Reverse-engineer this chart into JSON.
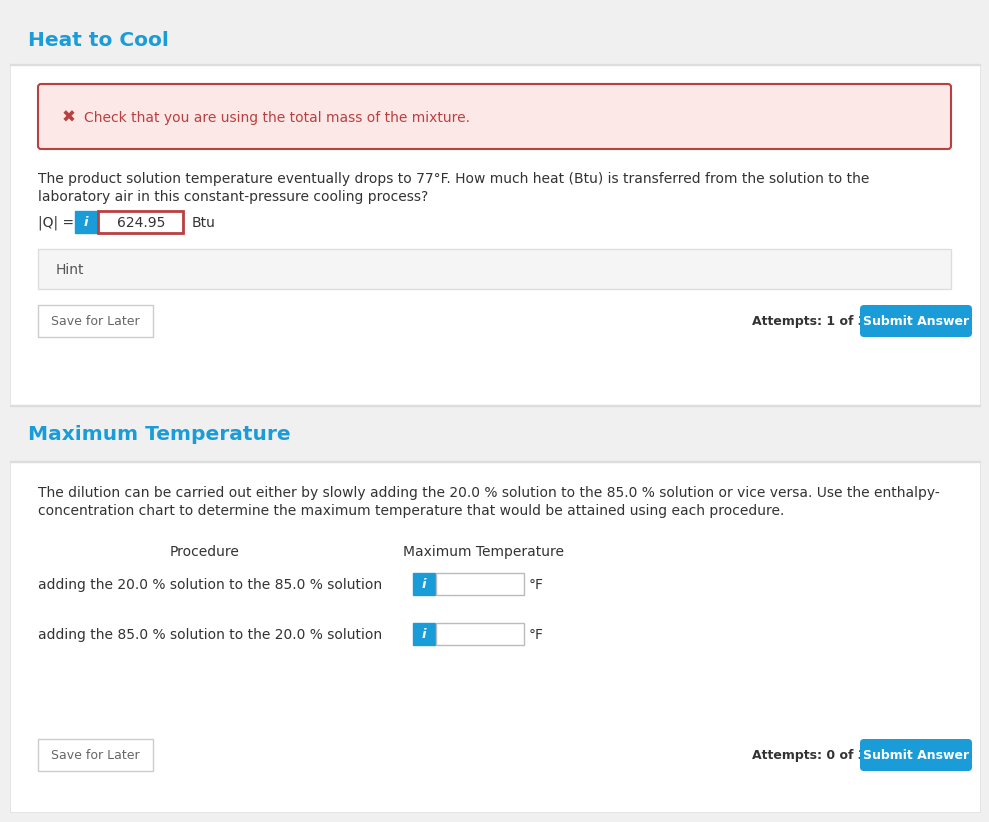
{
  "bg_color": "#f0f0f0",
  "white": "#ffffff",
  "section1_title": "Heat to Cool",
  "section2_title": "Maximum Temperature",
  "title_color": "#1a9cd8",
  "error_bg": "#fde8e8",
  "error_border": "#b94040",
  "error_text": "Check that you are using the total mass of the mixture.",
  "error_icon": "✖",
  "error_color": "#b94040",
  "body_text_color": "#333333",
  "para1": "The product solution temperature eventually drops to 77°F. How much heat (Btu) is transferred from the solution to the",
  "para1b": "laboratory air in this constant-pressure cooling process?",
  "input_label": "|Q| =",
  "input_value": "624.95",
  "input_unit": "Btu",
  "info_btn_color": "#1a9cd8",
  "hint_text": "Hint",
  "hint_text_color": "#555555",
  "save_btn_text": "Save for Later",
  "save_btn_border": "#cccccc",
  "save_btn_text_color": "#666666",
  "submit_btn_text": "Submit Answer",
  "submit_btn_color": "#1a9cd8",
  "attempts1_text": "Attempts: 1 of 3 used",
  "attempts2_text": "Attempts: 0 of 3 used",
  "input_border_active": "#b94040",
  "col_header1": "Procedure",
  "col_header2": "Maximum Temperature",
  "row1_label": "adding the 20.0 % solution to the 85.0 % solution",
  "row2_label": "adding the 85.0 % solution to the 20.0 % solution",
  "unit_label": "°F",
  "para2": "The dilution can be carried out either by slowly adding the 20.0 % solution to the 85.0 % solution or vice versa. Use the enthalpy-",
  "para2b": "concentration chart to determine the maximum temperature that would be attained using each procedure.",
  "panel_border": "#dddddd",
  "hint_bg": "#f5f5f5",
  "hint_border": "#dddddd",
  "text_font_size": 10.0,
  "small_font_size": 9.0,
  "title_font_size": 14.5
}
